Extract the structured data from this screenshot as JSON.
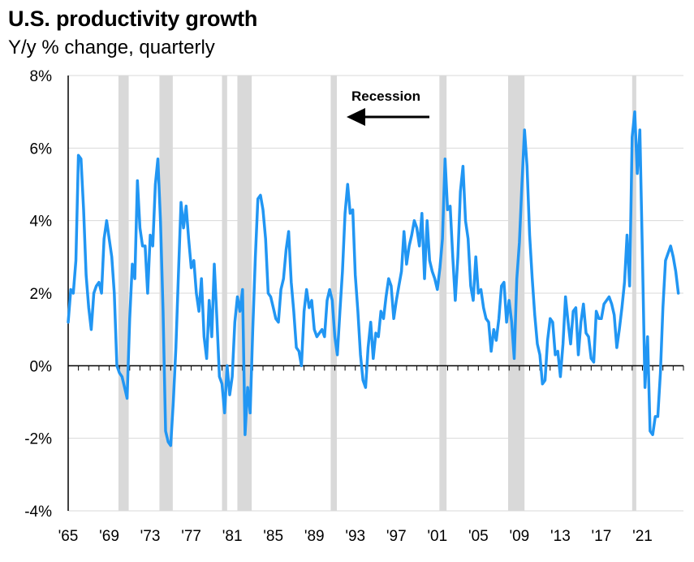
{
  "chart_data": {
    "type": "line",
    "title": "U.S. productivity growth",
    "subtitle": "Y/y % change, quarterly",
    "xlabel": "",
    "ylabel": "",
    "ylim": [
      -4,
      8
    ],
    "xlim": [
      1965.0,
      2025.0
    ],
    "yticks": [
      -4,
      -2,
      0,
      2,
      4,
      6,
      8
    ],
    "yticklabels": [
      "-4%",
      "-2%",
      "0%",
      "2%",
      "4%",
      "6%",
      "8%"
    ],
    "xticks": [
      1965,
      1969,
      1973,
      1977,
      1981,
      1985,
      1989,
      1993,
      1997,
      2001,
      2005,
      2009,
      2013,
      2017,
      2021
    ],
    "xticklabels": [
      "'65",
      "'69",
      "'73",
      "'77",
      "'81",
      "'85",
      "'89",
      "'93",
      "'97",
      "'01",
      "'05",
      "'09",
      "'13",
      "'17",
      "'21"
    ],
    "grid": "horizontal",
    "colors": {
      "line": "#2196F3",
      "recession": "#D9D9D9",
      "grid": "#D9D9D9",
      "axis": "#000000"
    },
    "recessions": [
      [
        1969.9,
        1970.9
      ],
      [
        1973.9,
        1975.2
      ],
      [
        1980.0,
        1980.5
      ],
      [
        1981.5,
        1982.9
      ],
      [
        1990.6,
        1991.2
      ],
      [
        2001.2,
        2001.9
      ],
      [
        2007.9,
        2009.5
      ],
      [
        2020.0,
        2020.4
      ]
    ],
    "annotation": {
      "text": "Recession",
      "arrow": "left"
    },
    "series": [
      {
        "values": [
          [
            1965.0,
            1.2
          ],
          [
            1965.25,
            2.1
          ],
          [
            1965.5,
            2.0
          ],
          [
            1965.75,
            2.9
          ],
          [
            1966.0,
            5.8
          ],
          [
            1966.25,
            5.7
          ],
          [
            1966.5,
            4.3
          ],
          [
            1966.75,
            2.5
          ],
          [
            1967.0,
            1.6
          ],
          [
            1967.25,
            1.0
          ],
          [
            1967.5,
            2.0
          ],
          [
            1967.75,
            2.2
          ],
          [
            1968.0,
            2.3
          ],
          [
            1968.25,
            2.0
          ],
          [
            1968.5,
            3.5
          ],
          [
            1968.75,
            4.0
          ],
          [
            1969.0,
            3.5
          ],
          [
            1969.25,
            3.0
          ],
          [
            1969.5,
            2.0
          ],
          [
            1969.75,
            0.0
          ],
          [
            1970.0,
            -0.2
          ],
          [
            1970.25,
            -0.3
          ],
          [
            1970.5,
            -0.6
          ],
          [
            1970.75,
            -0.9
          ],
          [
            1971.0,
            1.3
          ],
          [
            1971.25,
            2.8
          ],
          [
            1971.5,
            2.4
          ],
          [
            1971.75,
            5.1
          ],
          [
            1972.0,
            3.8
          ],
          [
            1972.25,
            3.3
          ],
          [
            1972.5,
            3.3
          ],
          [
            1972.75,
            2.0
          ],
          [
            1973.0,
            3.6
          ],
          [
            1973.25,
            3.3
          ],
          [
            1973.5,
            5.0
          ],
          [
            1973.75,
            5.7
          ],
          [
            1974.0,
            4.0
          ],
          [
            1974.25,
            1.5
          ],
          [
            1974.5,
            -1.8
          ],
          [
            1974.75,
            -2.1
          ],
          [
            1975.0,
            -2.2
          ],
          [
            1975.25,
            -1.0
          ],
          [
            1975.5,
            0.5
          ],
          [
            1975.75,
            2.5
          ],
          [
            1976.0,
            4.5
          ],
          [
            1976.25,
            3.8
          ],
          [
            1976.5,
            4.4
          ],
          [
            1976.75,
            3.5
          ],
          [
            1977.0,
            2.7
          ],
          [
            1977.25,
            2.9
          ],
          [
            1977.5,
            2.0
          ],
          [
            1977.75,
            1.5
          ],
          [
            1978.0,
            2.4
          ],
          [
            1978.25,
            0.8
          ],
          [
            1978.5,
            0.2
          ],
          [
            1978.75,
            1.8
          ],
          [
            1979.0,
            0.8
          ],
          [
            1979.25,
            2.8
          ],
          [
            1979.5,
            1.3
          ],
          [
            1979.75,
            -0.3
          ],
          [
            1980.0,
            -0.5
          ],
          [
            1980.25,
            -1.3
          ],
          [
            1980.5,
            0.0
          ],
          [
            1980.75,
            -0.8
          ],
          [
            1981.0,
            -0.3
          ],
          [
            1981.25,
            1.2
          ],
          [
            1981.5,
            1.9
          ],
          [
            1981.75,
            1.5
          ],
          [
            1982.0,
            2.1
          ],
          [
            1982.25,
            -1.9
          ],
          [
            1982.5,
            -0.6
          ],
          [
            1982.75,
            -1.3
          ],
          [
            1983.0,
            1.0
          ],
          [
            1983.25,
            3.0
          ],
          [
            1983.5,
            4.6
          ],
          [
            1983.75,
            4.7
          ],
          [
            1984.0,
            4.3
          ],
          [
            1984.25,
            3.5
          ],
          [
            1984.5,
            2.0
          ],
          [
            1984.75,
            1.9
          ],
          [
            1985.0,
            1.6
          ],
          [
            1985.25,
            1.3
          ],
          [
            1985.5,
            1.2
          ],
          [
            1985.75,
            2.1
          ],
          [
            1986.0,
            2.4
          ],
          [
            1986.25,
            3.2
          ],
          [
            1986.5,
            3.7
          ],
          [
            1986.75,
            2.3
          ],
          [
            1987.0,
            1.5
          ],
          [
            1987.25,
            0.5
          ],
          [
            1987.5,
            0.4
          ],
          [
            1987.75,
            0.0
          ],
          [
            1988.0,
            1.5
          ],
          [
            1988.25,
            2.1
          ],
          [
            1988.5,
            1.6
          ],
          [
            1988.75,
            1.8
          ],
          [
            1989.0,
            1.0
          ],
          [
            1989.25,
            0.8
          ],
          [
            1989.5,
            0.9
          ],
          [
            1989.75,
            1.0
          ],
          [
            1990.0,
            0.8
          ],
          [
            1990.25,
            1.8
          ],
          [
            1990.5,
            2.1
          ],
          [
            1990.75,
            1.8
          ],
          [
            1991.0,
            0.8
          ],
          [
            1991.25,
            0.3
          ],
          [
            1991.5,
            1.5
          ],
          [
            1991.75,
            2.6
          ],
          [
            1992.0,
            4.2
          ],
          [
            1992.25,
            5.0
          ],
          [
            1992.5,
            4.2
          ],
          [
            1992.75,
            4.3
          ],
          [
            1993.0,
            2.5
          ],
          [
            1993.25,
            1.5
          ],
          [
            1993.5,
            0.3
          ],
          [
            1993.75,
            -0.4
          ],
          [
            1994.0,
            -0.6
          ],
          [
            1994.25,
            0.5
          ],
          [
            1994.5,
            1.2
          ],
          [
            1994.75,
            0.2
          ],
          [
            1995.0,
            0.9
          ],
          [
            1995.25,
            0.8
          ],
          [
            1995.5,
            1.5
          ],
          [
            1995.75,
            1.3
          ],
          [
            1996.0,
            1.9
          ],
          [
            1996.25,
            2.4
          ],
          [
            1996.5,
            2.2
          ],
          [
            1996.75,
            1.3
          ],
          [
            1997.0,
            1.8
          ],
          [
            1997.25,
            2.2
          ],
          [
            1997.5,
            2.6
          ],
          [
            1997.75,
            3.7
          ],
          [
            1998.0,
            2.8
          ],
          [
            1998.25,
            3.3
          ],
          [
            1998.5,
            3.6
          ],
          [
            1998.75,
            4.0
          ],
          [
            1999.0,
            3.8
          ],
          [
            1999.25,
            3.3
          ],
          [
            1999.5,
            4.2
          ],
          [
            1999.75,
            2.4
          ],
          [
            2000.0,
            4.0
          ],
          [
            2000.25,
            2.9
          ],
          [
            2000.5,
            2.6
          ],
          [
            2000.75,
            2.4
          ],
          [
            2001.0,
            2.1
          ],
          [
            2001.25,
            2.7
          ],
          [
            2001.5,
            3.5
          ],
          [
            2001.75,
            5.7
          ],
          [
            2002.0,
            4.3
          ],
          [
            2002.25,
            4.4
          ],
          [
            2002.5,
            3.0
          ],
          [
            2002.75,
            1.8
          ],
          [
            2003.0,
            3.0
          ],
          [
            2003.25,
            4.8
          ],
          [
            2003.5,
            5.5
          ],
          [
            2003.75,
            4.0
          ],
          [
            2004.0,
            3.5
          ],
          [
            2004.25,
            2.2
          ],
          [
            2004.5,
            1.8
          ],
          [
            2004.75,
            3.0
          ],
          [
            2005.0,
            2.0
          ],
          [
            2005.25,
            2.1
          ],
          [
            2005.5,
            1.6
          ],
          [
            2005.75,
            1.3
          ],
          [
            2006.0,
            1.2
          ],
          [
            2006.25,
            0.4
          ],
          [
            2006.5,
            1.0
          ],
          [
            2006.75,
            0.7
          ],
          [
            2007.0,
            1.3
          ],
          [
            2007.25,
            2.2
          ],
          [
            2007.5,
            2.3
          ],
          [
            2007.75,
            1.2
          ],
          [
            2008.0,
            1.8
          ],
          [
            2008.25,
            1.2
          ],
          [
            2008.5,
            0.2
          ],
          [
            2008.75,
            2.4
          ],
          [
            2009.0,
            3.4
          ],
          [
            2009.25,
            5.0
          ],
          [
            2009.5,
            6.5
          ],
          [
            2009.75,
            5.5
          ],
          [
            2010.0,
            3.6
          ],
          [
            2010.25,
            2.4
          ],
          [
            2010.5,
            1.4
          ],
          [
            2010.75,
            0.6
          ],
          [
            2011.0,
            0.3
          ],
          [
            2011.25,
            -0.5
          ],
          [
            2011.5,
            -0.4
          ],
          [
            2011.75,
            0.7
          ],
          [
            2012.0,
            1.3
          ],
          [
            2012.25,
            1.2
          ],
          [
            2012.5,
            0.3
          ],
          [
            2012.75,
            0.4
          ],
          [
            2013.0,
            -0.3
          ],
          [
            2013.25,
            0.6
          ],
          [
            2013.5,
            1.9
          ],
          [
            2013.75,
            1.2
          ],
          [
            2014.0,
            0.6
          ],
          [
            2014.25,
            1.5
          ],
          [
            2014.5,
            1.6
          ],
          [
            2014.75,
            0.3
          ],
          [
            2015.0,
            1.2
          ],
          [
            2015.25,
            1.7
          ],
          [
            2015.5,
            0.9
          ],
          [
            2015.75,
            0.8
          ],
          [
            2016.0,
            0.2
          ],
          [
            2016.25,
            0.1
          ],
          [
            2016.5,
            1.5
          ],
          [
            2016.75,
            1.3
          ],
          [
            2017.0,
            1.3
          ],
          [
            2017.25,
            1.7
          ],
          [
            2017.5,
            1.8
          ],
          [
            2017.75,
            1.9
          ],
          [
            2018.0,
            1.7
          ],
          [
            2018.25,
            1.4
          ],
          [
            2018.5,
            0.5
          ],
          [
            2018.75,
            1.0
          ],
          [
            2019.0,
            1.6
          ],
          [
            2019.25,
            2.3
          ],
          [
            2019.5,
            3.6
          ],
          [
            2019.75,
            2.2
          ],
          [
            2020.0,
            6.3
          ],
          [
            2020.25,
            7.0
          ],
          [
            2020.5,
            5.3
          ],
          [
            2020.75,
            6.5
          ],
          [
            2021.0,
            3.0
          ],
          [
            2021.25,
            -0.6
          ],
          [
            2021.5,
            0.8
          ],
          [
            2021.75,
            -1.8
          ],
          [
            2022.0,
            -1.9
          ],
          [
            2022.25,
            -1.4
          ],
          [
            2022.5,
            -1.4
          ],
          [
            2022.75,
            -0.2
          ],
          [
            2023.0,
            1.6
          ],
          [
            2023.25,
            2.9
          ],
          [
            2023.5,
            3.1
          ],
          [
            2023.75,
            3.3
          ],
          [
            2024.0,
            3.0
          ],
          [
            2024.25,
            2.6
          ],
          [
            2024.5,
            2.0
          ]
        ]
      }
    ]
  }
}
